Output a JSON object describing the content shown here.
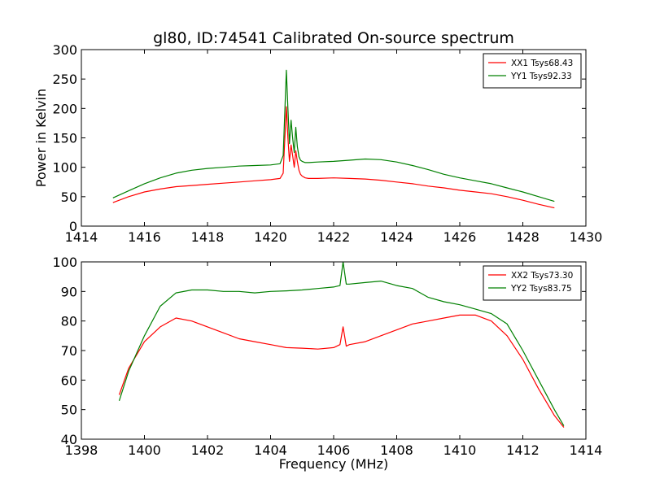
{
  "chart_data": [
    {
      "type": "line",
      "title": "gl80, ID:74541 Calibrated On-source spectrum",
      "xlabel": "",
      "ylabel": "Power in Kelvin",
      "xlim": [
        1414,
        1430
      ],
      "ylim": [
        0,
        300
      ],
      "xticks": [
        1414,
        1416,
        1418,
        1420,
        1422,
        1424,
        1426,
        1428,
        1430
      ],
      "yticks": [
        0,
        50,
        100,
        150,
        200,
        250,
        300
      ],
      "legend_position": "top-right",
      "grid": false,
      "series": [
        {
          "name": "XX1 Tsys68.43",
          "color": "#ff0000",
          "x": [
            1415.0,
            1415.5,
            1416.0,
            1416.5,
            1417.0,
            1417.5,
            1418.0,
            1418.5,
            1419.0,
            1419.5,
            1420.0,
            1420.3,
            1420.4,
            1420.5,
            1420.55,
            1420.6,
            1420.65,
            1420.7,
            1420.75,
            1420.8,
            1420.85,
            1420.9,
            1420.95,
            1421.0,
            1421.1,
            1421.2,
            1421.5,
            1422.0,
            1422.5,
            1423.0,
            1423.5,
            1424.0,
            1424.5,
            1425.0,
            1425.5,
            1426.0,
            1426.5,
            1427.0,
            1427.5,
            1428.0,
            1428.5,
            1429.0
          ],
          "values": [
            40,
            50,
            58,
            63,
            67,
            69,
            71,
            73,
            75,
            77,
            79,
            81,
            90,
            203,
            150,
            110,
            138,
            120,
            100,
            128,
            110,
            95,
            88,
            85,
            82,
            81,
            81,
            82,
            81,
            80,
            78,
            75,
            72,
            68,
            65,
            61,
            58,
            55,
            50,
            44,
            37,
            31
          ]
        },
        {
          "name": "YY1 Tsys92.33",
          "color": "#008000",
          "x": [
            1415.0,
            1415.5,
            1416.0,
            1416.5,
            1417.0,
            1417.5,
            1418.0,
            1418.5,
            1419.0,
            1419.5,
            1420.0,
            1420.3,
            1420.4,
            1420.5,
            1420.55,
            1420.6,
            1420.65,
            1420.7,
            1420.75,
            1420.8,
            1420.85,
            1420.9,
            1420.95,
            1421.0,
            1421.1,
            1421.2,
            1421.5,
            1422.0,
            1422.5,
            1423.0,
            1423.5,
            1424.0,
            1424.5,
            1425.0,
            1425.5,
            1426.0,
            1426.5,
            1427.0,
            1427.5,
            1428.0,
            1428.5,
            1429.0
          ],
          "values": [
            48,
            60,
            72,
            82,
            90,
            95,
            98,
            100,
            102,
            103,
            104,
            106,
            120,
            265,
            200,
            140,
            180,
            150,
            125,
            168,
            135,
            118,
            112,
            110,
            108,
            108,
            109,
            110,
            112,
            114,
            113,
            109,
            103,
            96,
            88,
            82,
            77,
            72,
            65,
            58,
            50,
            42
          ]
        }
      ]
    },
    {
      "type": "line",
      "title": "",
      "xlabel": "Frequency (MHz)",
      "ylabel": "",
      "xlim": [
        1398,
        1414
      ],
      "ylim": [
        40,
        100
      ],
      "xticks": [
        1398,
        1400,
        1402,
        1404,
        1406,
        1408,
        1410,
        1412,
        1414
      ],
      "yticks": [
        40,
        50,
        60,
        70,
        80,
        90,
        100
      ],
      "legend_position": "top-right",
      "grid": false,
      "series": [
        {
          "name": "XX2 Tsys73.30",
          "color": "#ff0000",
          "x": [
            1399.2,
            1399.5,
            1400.0,
            1400.5,
            1401.0,
            1401.5,
            1402.0,
            1402.5,
            1403.0,
            1403.5,
            1404.0,
            1404.5,
            1405.0,
            1405.5,
            1406.0,
            1406.2,
            1406.3,
            1406.4,
            1406.5,
            1407.0,
            1407.5,
            1408.0,
            1408.5,
            1409.0,
            1409.5,
            1410.0,
            1410.5,
            1411.0,
            1411.5,
            1412.0,
            1412.5,
            1413.0,
            1413.3
          ],
          "values": [
            55,
            64,
            73,
            78,
            81,
            80,
            78,
            76,
            74,
            73,
            72,
            71,
            70.8,
            70.5,
            71,
            72,
            78,
            71.5,
            72,
            73,
            75,
            77,
            79,
            80,
            81,
            82,
            82,
            80,
            75,
            67,
            57,
            48,
            44
          ]
        },
        {
          "name": "YY2 Tsys83.75",
          "color": "#008000",
          "x": [
            1399.2,
            1399.5,
            1400.0,
            1400.5,
            1401.0,
            1401.5,
            1402.0,
            1402.5,
            1403.0,
            1403.5,
            1404.0,
            1404.5,
            1405.0,
            1405.5,
            1406.0,
            1406.2,
            1406.3,
            1406.4,
            1406.5,
            1407.0,
            1407.5,
            1408.0,
            1408.5,
            1409.0,
            1409.5,
            1410.0,
            1410.5,
            1411.0,
            1411.5,
            1412.0,
            1412.5,
            1413.0,
            1413.3
          ],
          "values": [
            53,
            63,
            75,
            85,
            89.5,
            90.5,
            90.5,
            90,
            90,
            89.5,
            90,
            90.2,
            90.5,
            91,
            91.5,
            92,
            100,
            92.5,
            92.5,
            93,
            93.5,
            92,
            91,
            88,
            86.5,
            85.5,
            84,
            82.5,
            79,
            70,
            60,
            50,
            44.5
          ]
        }
      ]
    }
  ]
}
